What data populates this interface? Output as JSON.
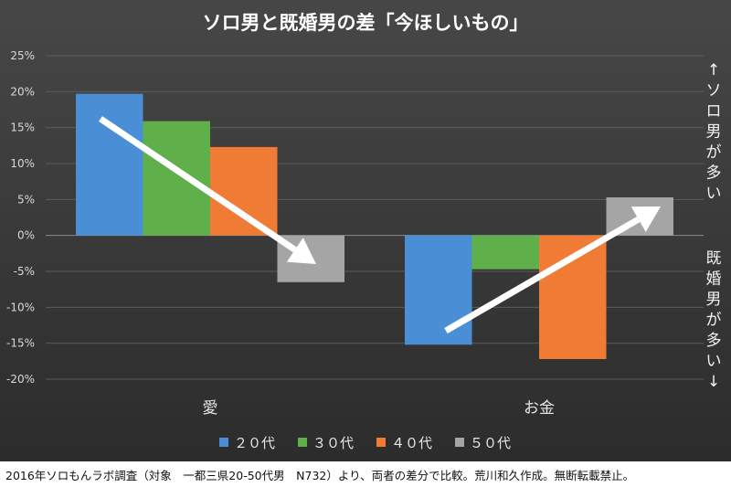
{
  "chart_data": {
    "type": "bar",
    "title": "ソロ男と既婚男の差「今ほしいもの」",
    "categories": [
      "愛",
      "お金"
    ],
    "series": [
      {
        "name": "２０代",
        "color": "#4a8fd6",
        "values": [
          19.7,
          -15.2
        ]
      },
      {
        "name": "３０代",
        "color": "#5fb04a",
        "values": [
          15.9,
          -4.7
        ]
      },
      {
        "name": "４０代",
        "color": "#ef7b34",
        "values": [
          12.3,
          -17.2
        ]
      },
      {
        "name": "５０代",
        "color": "#a5a5a5",
        "values": [
          -6.5,
          5.3
        ]
      }
    ],
    "ylim": [
      -20,
      25
    ],
    "yticks": [
      25,
      20,
      15,
      10,
      5,
      0,
      -5,
      -10,
      -15,
      -20
    ],
    "ytick_labels": [
      "25%",
      "20%",
      "15%",
      "10%",
      "5%",
      "0%",
      "-5%",
      "-10%",
      "-15%",
      "-20%"
    ],
    "grid": true,
    "legend_position": "bottom",
    "annotations": {
      "upper": "↑ソロ男が多い",
      "lower": "既婚男が多い↓"
    }
  },
  "caption": "2016年ソロもんラボ調査（対象　一都三県20-50代男　N732）より、両者の差分で比較。荒川和久作成。無断転載禁止。"
}
